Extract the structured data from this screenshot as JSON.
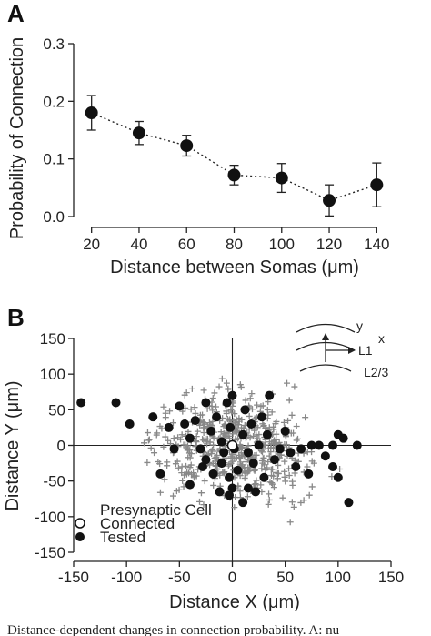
{
  "chart_data": [
    {
      "type": "line",
      "panel_label": "A",
      "xlabel": "Distance between Somas (μm)",
      "ylabel": "Probability of Connection",
      "xlim": [
        14,
        146
      ],
      "ylim": [
        0,
        0.3
      ],
      "xticks": [
        "20",
        "40",
        "60",
        "80",
        "100",
        "120",
        "140"
      ],
      "yticks": [
        "0.0",
        "0.1",
        "0.2",
        "0.3"
      ],
      "x": [
        20,
        40,
        60,
        80,
        100,
        120,
        140
      ],
      "y": [
        0.18,
        0.145,
        0.123,
        0.072,
        0.067,
        0.028,
        0.055
      ],
      "err": [
        0.03,
        0.02,
        0.018,
        0.017,
        0.025,
        0.027,
        0.038
      ],
      "line_style": "dotted"
    },
    {
      "type": "scatter",
      "panel_label": "B",
      "xlabel": "Distance X (μm)",
      "ylabel": "Distance Y (μm)",
      "xlim": [
        -150,
        150
      ],
      "ylim": [
        -150,
        150
      ],
      "xticks": [
        "-150",
        "-100",
        "-50",
        "0",
        "50",
        "100",
        "150"
      ],
      "yticks": [
        "-150",
        "-100",
        "-50",
        "0",
        "50",
        "100",
        "150"
      ],
      "legend": {
        "presynaptic": "Presynaptic Cell",
        "connected": "Connected",
        "tested": "Tested"
      },
      "inset_labels": {
        "y": "y",
        "x": "x",
        "l1": "L1",
        "l23": "L2/3"
      },
      "presynaptic_cell": [
        0,
        0
      ],
      "connected": [
        [
          -143,
          60
        ],
        [
          -110,
          60
        ],
        [
          -97,
          30
        ],
        [
          -75,
          40
        ],
        [
          -68,
          -40
        ],
        [
          -60,
          25
        ],
        [
          -55,
          -5
        ],
        [
          -50,
          55
        ],
        [
          -45,
          30
        ],
        [
          -40,
          10
        ],
        [
          -40,
          -55
        ],
        [
          -35,
          35
        ],
        [
          -30,
          -5
        ],
        [
          -28,
          -30
        ],
        [
          -25,
          60
        ],
        [
          -20,
          20
        ],
        [
          -18,
          -40
        ],
        [
          -15,
          40
        ],
        [
          -12,
          -65
        ],
        [
          -10,
          5
        ],
        [
          -10,
          -25
        ],
        [
          -5,
          60
        ],
        [
          -3,
          -45
        ],
        [
          -2,
          25
        ],
        [
          0,
          70
        ],
        [
          0,
          -60
        ],
        [
          2,
          -5
        ],
        [
          5,
          -35
        ],
        [
          10,
          15
        ],
        [
          12,
          50
        ],
        [
          15,
          -10
        ],
        [
          15,
          -60
        ],
        [
          18,
          30
        ],
        [
          20,
          -25
        ],
        [
          25,
          0
        ],
        [
          28,
          40
        ],
        [
          30,
          -45
        ],
        [
          33,
          15
        ],
        [
          35,
          70
        ],
        [
          40,
          -20
        ],
        [
          45,
          -5
        ],
        [
          50,
          20
        ],
        [
          55,
          -10
        ],
        [
          60,
          -30
        ],
        [
          65,
          -5
        ],
        [
          72,
          -40
        ],
        [
          75,
          0
        ],
        [
          82,
          0
        ],
        [
          88,
          -15
        ],
        [
          95,
          0
        ],
        [
          95,
          -30
        ],
        [
          100,
          -45
        ],
        [
          100,
          15
        ],
        [
          105,
          10
        ],
        [
          110,
          -80
        ],
        [
          118,
          0
        ],
        [
          -3,
          -70
        ],
        [
          22,
          -65
        ],
        [
          -25,
          -20
        ],
        [
          -8,
          -10
        ],
        [
          10,
          -80
        ]
      ],
      "tested_count": 540
    }
  ],
  "caption": "Distance-dependent changes in connection probability. A: nu"
}
